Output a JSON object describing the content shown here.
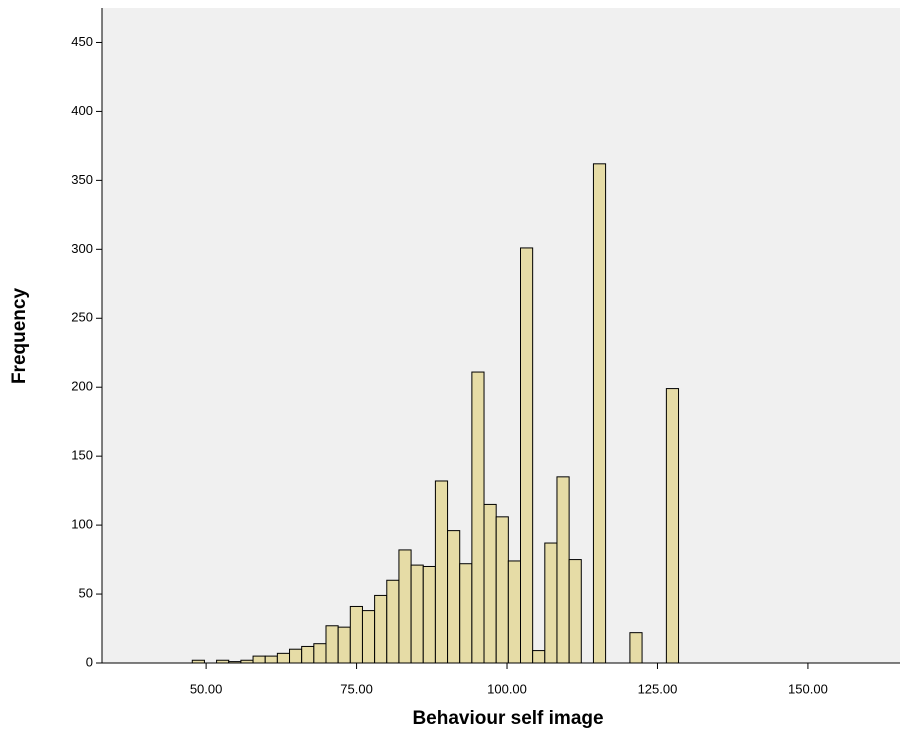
{
  "chart_data": {
    "type": "histogram",
    "x_label": "Behaviour self image",
    "y_label": "Frequency",
    "bins": [
      47.7,
      49.72,
      51.74,
      53.76,
      55.78,
      57.8,
      59.82,
      61.84,
      63.86,
      65.88,
      67.9,
      69.92,
      71.94,
      73.96,
      75.98,
      78.0,
      80.02,
      82.04,
      84.06,
      86.08,
      88.1,
      90.12,
      92.14,
      94.16,
      96.18,
      98.2,
      100.22,
      102.24,
      104.26,
      106.28,
      108.3,
      110.32,
      112.34,
      114.36,
      116.38,
      118.4,
      120.42,
      122.44,
      124.46,
      126.48,
      128.5
    ],
    "values": [
      2,
      0,
      2,
      1,
      2,
      5,
      5,
      7,
      10,
      12,
      14,
      27,
      26,
      41,
      38,
      49,
      60,
      82,
      71,
      70,
      132,
      96,
      72,
      211,
      115,
      106,
      74,
      301,
      9,
      87,
      135,
      75,
      0,
      362,
      0,
      0,
      22,
      0,
      0,
      199
    ],
    "color": "#e6dca6",
    "xlim": [
      32.7,
      165.3
    ],
    "ylim": [
      0,
      475
    ],
    "xticks": [
      {
        "value": 50,
        "label": "50.00"
      },
      {
        "value": 75,
        "label": "75.00"
      },
      {
        "value": 100,
        "label": "100.00"
      },
      {
        "value": 125,
        "label": "125.00"
      },
      {
        "value": 150,
        "label": "150.00"
      }
    ],
    "yticks": [
      0,
      50,
      100,
      150,
      200,
      250,
      300,
      350,
      400,
      450
    ]
  }
}
